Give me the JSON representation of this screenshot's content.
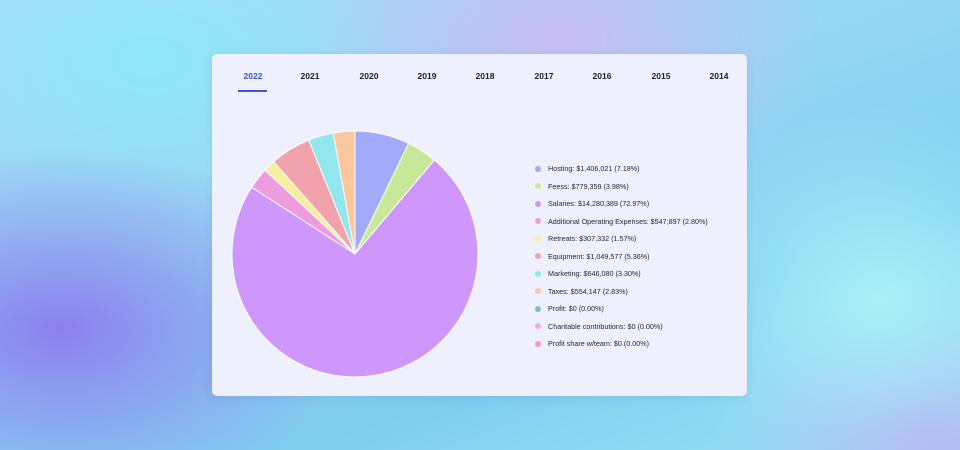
{
  "tabs": [
    {
      "label": "2022",
      "active": true
    },
    {
      "label": "2021"
    },
    {
      "label": "2020"
    },
    {
      "label": "2019"
    },
    {
      "label": "2018"
    },
    {
      "label": "2017"
    },
    {
      "label": "2016"
    },
    {
      "label": "2015"
    },
    {
      "label": "2014"
    }
  ],
  "chart_data": {
    "type": "pie",
    "categories": [
      "Hosting",
      "Feess",
      "Salaries",
      "Additional Operating Expenses",
      "Retreats",
      "Equipment",
      "Marketing",
      "Taxes",
      "Profit",
      "Charitable contributions",
      "Profit share w/team"
    ],
    "values": [
      1406021,
      779359,
      14280389,
      547897,
      307332,
      1049577,
      646080,
      554147,
      0,
      0,
      0
    ],
    "percentages": [
      7.18,
      3.98,
      72.97,
      2.8,
      1.57,
      5.36,
      3.3,
      2.83,
      0.0,
      0.0,
      0.0
    ],
    "colors": [
      "#a2aafb",
      "#c8e89a",
      "#cf96fc",
      "#ee9cde",
      "#f9ee9c",
      "#f1a2ac",
      "#92e7ee",
      "#fbc7a0",
      "#76c6be",
      "#f5a6f2",
      "#f996c9"
    ],
    "legend_labels": [
      "Hosting: $1,406,021 (7.18%)",
      "Feess: $779,359 (3.98%)",
      "Salaries: $14,280,389 (72.97%)",
      "Additional Operating Expenses: $547,897 (2.80%)",
      "Retreats: $307,332 (1.57%)",
      "Equipment: $1,049,577 (5.36%)",
      "Marketing: $646,080 (3.30%)",
      "Taxes: $554,147 (2.83%)",
      "Profit: $0 (0.00%)",
      "Charitable contributions: $0 (0.00%)",
      "Profit share w/team: $0 (0.00%)"
    ],
    "legend_position": "right"
  }
}
